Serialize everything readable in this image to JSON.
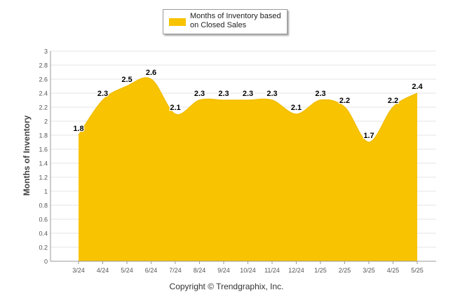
{
  "copyright": "Copyright © Trendgraphix, Inc.",
  "colors": {
    "fill": "#F8C300",
    "stroke": "#F2BE00",
    "grid": "#E6E6E6",
    "axis": "#999999",
    "label": "#555555"
  },
  "chart_data": {
    "type": "area",
    "title": "",
    "xlabel": "",
    "ylabel": "Months of Inventory",
    "ylim": [
      0,
      3
    ],
    "y_ticks": [
      "0",
      "0.2",
      "0.4",
      "0.6",
      "0.8",
      "1",
      "1.2",
      "1.4",
      "1.6",
      "1.8",
      "2",
      "2.2",
      "2.4",
      "2.6",
      "2.8",
      "3"
    ],
    "grid": true,
    "legend_position": "top-center",
    "categories": [
      "3/24",
      "4/24",
      "5/24",
      "6/24",
      "7/24",
      "8/24",
      "9/24",
      "10/24",
      "11/24",
      "12/24",
      "1/25",
      "2/25",
      "3/25",
      "4/25",
      "5/25"
    ],
    "series": [
      {
        "name": "Months of Inventory based on Closed Sales",
        "values": [
          1.8,
          2.3,
          2.5,
          2.6,
          2.1,
          2.3,
          2.3,
          2.3,
          2.3,
          2.1,
          2.3,
          2.2,
          1.7,
          2.2,
          2.4
        ],
        "labels": [
          "1.8",
          "2.3",
          "2.5",
          "2.6",
          "2.1",
          "2.3",
          "2.3",
          "2.3",
          "2.3",
          "2.1",
          "2.3",
          "2.2",
          "1.7",
          "2.2",
          "2.4"
        ]
      }
    ]
  }
}
